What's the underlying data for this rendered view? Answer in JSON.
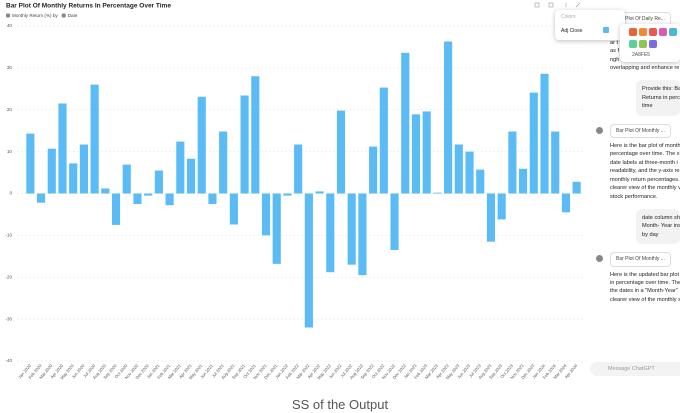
{
  "chart_data": {
    "type": "bar",
    "title": "Bar Plot Of Monthly Returns In Percentage Over Time",
    "legend_items": [
      "Monthly Return (%) by",
      "Date"
    ],
    "color": "#5bbcf5",
    "categories": [
      "Jan 2020",
      "Feb 2020",
      "Mar 2020",
      "Apr 2020",
      "May 2020",
      "Jun 2020",
      "Jul 2020",
      "Aug 2020",
      "Sep 2020",
      "Oct 2020",
      "Nov 2020",
      "Dec 2020",
      "Jan 2021",
      "Feb 2021",
      "Mar 2021",
      "Apr 2021",
      "May 2021",
      "Jun 2021",
      "Jul 2021",
      "Aug 2021",
      "Sep 2021",
      "Oct 2021",
      "Nov 2021",
      "Dec 2021",
      "Jan 2022",
      "Feb 2022",
      "Mar 2022",
      "Apr 2022",
      "May 2022",
      "Jun 2022",
      "Jul 2022",
      "Aug 2022",
      "Sep 2022",
      "Oct 2022",
      "Nov 2022",
      "Dec 2022",
      "Jan 2023",
      "Feb 2023",
      "Mar 2023",
      "Apr 2023",
      "May 2023",
      "Jun 2023",
      "Jul 2023",
      "Aug 2023",
      "Sep 2023",
      "Oct 2023",
      "Nov 2023",
      "Dec 2023",
      "Jan 2024",
      "Feb 2024",
      "Mar 2024",
      "Apr 2024"
    ],
    "values": [
      14.3,
      -2.2,
      10.7,
      21.5,
      7.2,
      11.7,
      26,
      1.2,
      -7.5,
      6.9,
      -2.5,
      -0.5,
      5.5,
      -2.8,
      12.4,
      8.3,
      23.1,
      -2.5,
      14.8,
      -7.4,
      23.4,
      28,
      -10,
      -16.8,
      -0.5,
      11.7,
      -32,
      0.5,
      -18.8,
      19.8,
      -17,
      -19.5,
      11.2,
      25.3,
      -13.5,
      33.6,
      18.9,
      19.6,
      0.2,
      36.3,
      11.7,
      10,
      5.7,
      -11.5,
      -6.2,
      14.8,
      5.9,
      24.1,
      28.6,
      14.8,
      -4.5,
      2.8
    ],
    "ylim": [
      -40,
      40
    ],
    "yticks": [
      -40,
      -30,
      -20,
      -10,
      0,
      10,
      20,
      30,
      40
    ],
    "grid": true
  },
  "popup": {
    "title": "Colors",
    "series_label": "Adj Close",
    "hex": "2A8FE5",
    "swatches": [
      "#e8643c",
      "#ef8a3a",
      "#e8584e",
      "#d85bb5",
      "#4fb6d8",
      "#5ccf9a",
      "#8dc84e",
      "#7f6be0"
    ]
  },
  "sidebar": {
    "messages": [
      {
        "role": "assistant",
        "card": "Bar Plot Of Daily Re...",
        "lines": [
          "rf",
          "ar t",
          "as f",
          "ngh",
          "overlapping and enhance re"
        ]
      },
      {
        "role": "user",
        "lines": [
          "Provide this: Bar",
          "Returns in percen",
          "time"
        ]
      },
      {
        "role": "assistant",
        "card": "Bar Plot Of Monthly ...",
        "lines": [
          "Here is the bar plot of month",
          "percentage over time. The x",
          "date labels at three-month i",
          "readability, and the y-axis re",
          "monthly return percentages.",
          "clearer view of the monthly v",
          "stock performance."
        ]
      },
      {
        "role": "user",
        "lines": [
          "date column sho",
          "Month- Year inst",
          "by day"
        ]
      },
      {
        "role": "assistant",
        "card": "Bar Plot Of Monthly ...",
        "lines": [
          "Here is the updated bar plot",
          "in percentage over time. The",
          "the dates in a \"Month-Year\"",
          "clearer view of the monthly s"
        ]
      }
    ],
    "input_placeholder": "Message ChatGPT"
  },
  "caption": "SS of the Output"
}
